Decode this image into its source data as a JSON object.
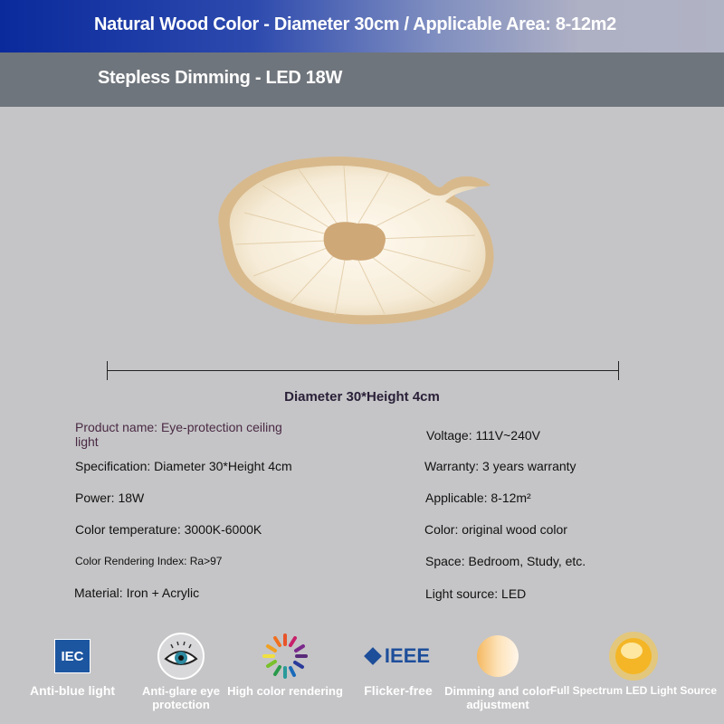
{
  "header": {
    "title": "Natural Wood Color - Diameter 30cm / Applicable Area: 8-12m2",
    "subtitle": "Stepless Dimming - LED 18W"
  },
  "dimension_label": "Diameter 30*Height 4cm",
  "specs_left": [
    "Product name: Eye-protection ceiling light",
    "Specification: Diameter 30*Height 4cm",
    "Power: 18W",
    "Color temperature: 3000K-6000K",
    "Color Rendering Index: Ra>97",
    "Material: Iron + Acrylic"
  ],
  "specs_right": [
    "Voltage: 111V~240V",
    "Warranty: 3 years warranty",
    "Applicable: 8-12m²",
    "Color: original wood color",
    "Space: Bedroom, Study, etc.",
    "Light source: LED"
  ],
  "features": [
    {
      "icon": "iec-logo-icon",
      "label": "Anti-blue light",
      "logo_text": "IEC"
    },
    {
      "icon": "eye-icon",
      "label": "Anti-glare eye protection"
    },
    {
      "icon": "color-wheel-icon",
      "label": "High color rendering"
    },
    {
      "icon": "ieee-logo-icon",
      "label": "Flicker-free",
      "logo_text": "IEEE"
    },
    {
      "icon": "dimming-gradient-icon",
      "label": "Dimming and color adjustment"
    },
    {
      "icon": "sun-icon",
      "label": "Full Spectrum LED Light Source"
    }
  ],
  "colors": {
    "header_blue": "#0a2a9c",
    "band_gray": "#6f757c",
    "background": "#c5c5c7",
    "wood": "#d8b98c"
  }
}
